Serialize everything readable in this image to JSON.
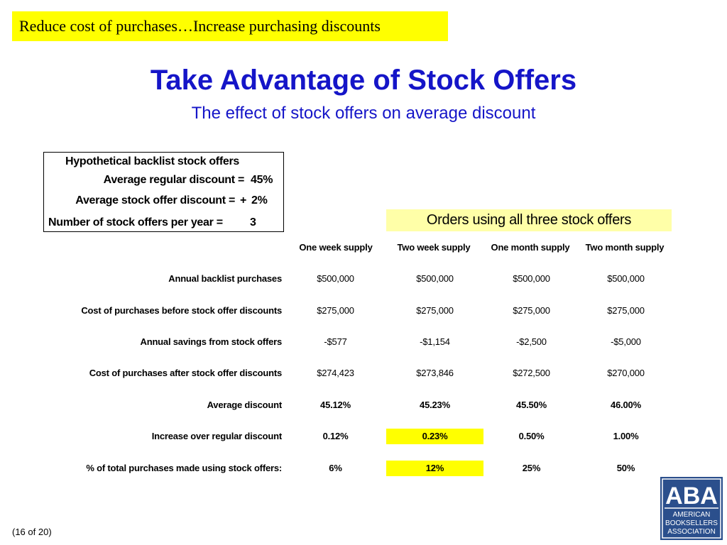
{
  "banner": "Reduce cost of purchases…Increase purchasing discounts",
  "title": "Take Advantage of Stock Offers",
  "subtitle": "The effect of stock offers on average discount",
  "assumptions": {
    "heading": "Hypothetical backlist stock offers",
    "regular_label": "Average regular discount =",
    "regular_value": "45%",
    "offer_label": "Average stock offer discount =",
    "offer_sign": "+",
    "offer_value": "2%",
    "count_label": "Number of stock offers per year =",
    "count_value": "3"
  },
  "orders_header": "Orders using all three stock offers",
  "columns": [
    "One week supply",
    "Two week supply",
    "One month supply",
    "Two month supply"
  ],
  "rows": [
    {
      "label": "Annual backlist purchases",
      "values": [
        "$500,000",
        "$500,000",
        "$500,000",
        "$500,000"
      ]
    },
    {
      "label": "Cost of purchases before stock offer discounts",
      "values": [
        "$275,000",
        "$275,000",
        "$275,000",
        "$275,000"
      ]
    },
    {
      "label": "Annual savings from stock offers",
      "values": [
        "-$577",
        "-$1,154",
        "-$2,500",
        "-$5,000"
      ]
    },
    {
      "label": "Cost of purchases after stock offer discounts",
      "values": [
        "$274,423",
        "$273,846",
        "$272,500",
        "$270,000"
      ]
    },
    {
      "label": "Average discount",
      "values": [
        "45.12%",
        "45.23%",
        "45.50%",
        "46.00%"
      ]
    },
    {
      "label": "Increase over regular discount",
      "values": [
        "0.12%",
        "0.23%",
        "0.50%",
        "1.00%"
      ]
    },
    {
      "label": "% of total purchases made using stock offers:",
      "values": [
        "6%",
        "12%",
        "25%",
        "50%"
      ]
    }
  ],
  "footer": "(16 of 20)",
  "logo": {
    "letters": "ABA",
    "line1": "AMERICAN",
    "line2": "BOOKSELLERS",
    "line3": "ASSOCIATION"
  },
  "colors": {
    "title": "#1515c8",
    "highlight": "#ffff00",
    "orders_header_bg": "#ffffa8",
    "logo_blue": "#2b4f8c"
  }
}
